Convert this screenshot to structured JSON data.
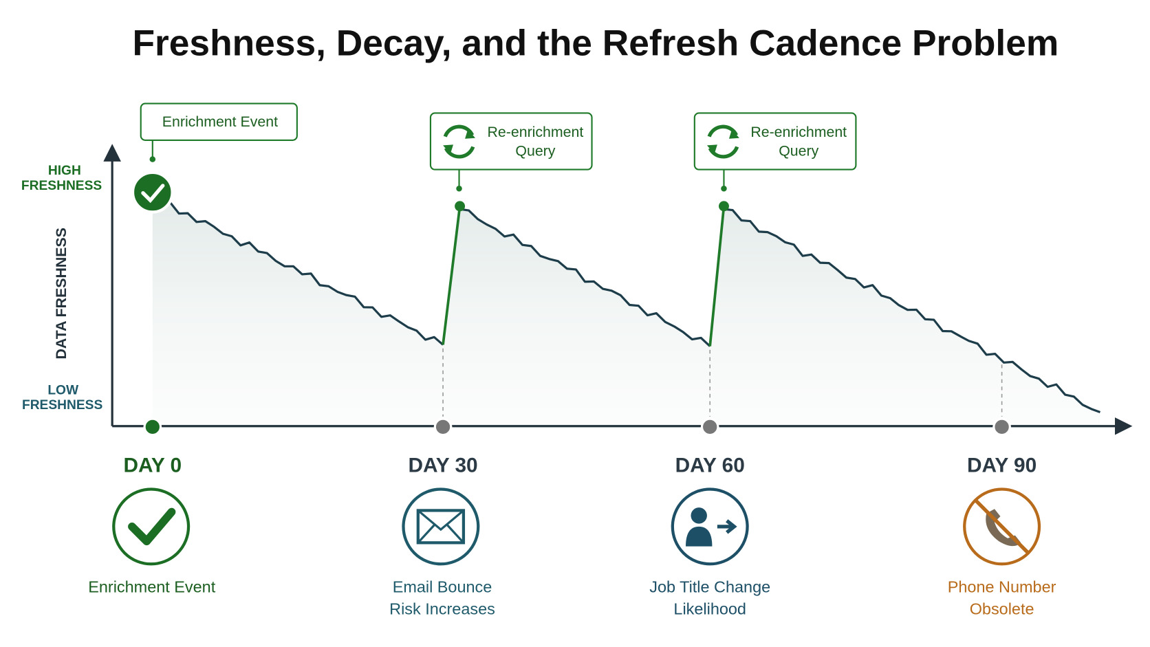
{
  "title": "Freshness, Decay, and the Refresh Cadence Problem",
  "y_axis": {
    "label": "DATA FRESHNESS",
    "high": [
      "HIGH",
      "FRESHNESS"
    ],
    "low": [
      "LOW",
      "FRESHNESS"
    ]
  },
  "callouts": [
    {
      "lines": [
        "Enrichment Event"
      ]
    },
    {
      "lines": [
        "Re-enrichment",
        "Query"
      ]
    },
    {
      "lines": [
        "Re-enrichment",
        "Query"
      ]
    }
  ],
  "milestones": [
    {
      "day": "DAY 0",
      "caption": [
        "Enrichment Event"
      ]
    },
    {
      "day": "DAY 30",
      "caption": [
        "Email Bounce",
        "Risk Increases"
      ]
    },
    {
      "day": "DAY 60",
      "caption": [
        "Job Title Change",
        "Likelihood"
      ]
    },
    {
      "day": "DAY 90",
      "caption": [
        "Phone Number",
        "Obsolete"
      ]
    }
  ]
}
